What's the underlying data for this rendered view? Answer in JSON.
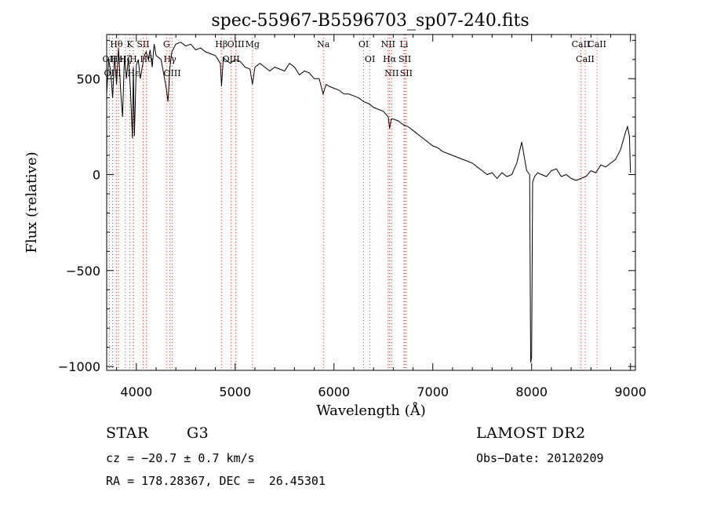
{
  "chart_data": {
    "type": "line",
    "title": "spec-55967-B5596703_sp07-240.fits",
    "xlabel": "Wavelength (Å)",
    "ylabel": "Flux (relative)",
    "xlim": [
      3700,
      9050
    ],
    "ylim": [
      -1020,
      730
    ],
    "xticks": [
      4000,
      5000,
      6000,
      7000,
      8000,
      9000
    ],
    "yticks": [
      -1000,
      -500,
      0,
      500
    ],
    "grid": false,
    "series": [
      {
        "x": [
          3700,
          3720,
          3740,
          3760,
          3780,
          3800,
          3820,
          3840,
          3860,
          3880,
          3900,
          3920,
          3940,
          3960,
          3970,
          3980,
          4000,
          4020,
          4040,
          4060,
          4080,
          4100,
          4120,
          4140,
          4160,
          4180,
          4200,
          4250,
          4300,
          4320,
          4340,
          4360,
          4400,
          4450,
          4500,
          4550,
          4600,
          4650,
          4700,
          4750,
          4800,
          4850,
          4862,
          4880,
          4900,
          4950,
          5000,
          5050,
          5100,
          5150,
          5175,
          5200,
          5250,
          5300,
          5350,
          5400,
          5450,
          5500,
          5550,
          5600,
          5650,
          5700,
          5750,
          5800,
          5850,
          5890,
          5920,
          5950,
          6000,
          6050,
          6100,
          6150,
          6200,
          6250,
          6300,
          6350,
          6400,
          6450,
          6500,
          6550,
          6563,
          6580,
          6600,
          6650,
          6700,
          6750,
          6800,
          6850,
          6900,
          6950,
          7000,
          7050,
          7100,
          7150,
          7200,
          7250,
          7300,
          7350,
          7400,
          7450,
          7500,
          7550,
          7600,
          7650,
          7700,
          7750,
          7800,
          7850,
          7900,
          7950,
          7980,
          7990,
          8000,
          8010,
          8030,
          8060,
          8100,
          8150,
          8200,
          8250,
          8300,
          8350,
          8400,
          8450,
          8500,
          8550,
          8600,
          8650,
          8700,
          8750,
          8800,
          8850,
          8900,
          8950,
          8970,
          8990,
          9000
        ],
        "y": [
          420,
          600,
          540,
          400,
          620,
          470,
          660,
          450,
          300,
          620,
          500,
          610,
          450,
          190,
          560,
          200,
          570,
          600,
          500,
          560,
          620,
          640,
          600,
          650,
          560,
          680,
          620,
          600,
          460,
          380,
          560,
          640,
          680,
          690,
          670,
          680,
          650,
          660,
          640,
          630,
          620,
          580,
          460,
          610,
          600,
          580,
          600,
          590,
          560,
          550,
          470,
          560,
          580,
          560,
          540,
          560,
          550,
          540,
          580,
          560,
          520,
          540,
          530,
          500,
          500,
          420,
          470,
          460,
          450,
          440,
          420,
          420,
          410,
          400,
          380,
          370,
          350,
          340,
          330,
          300,
          240,
          290,
          290,
          280,
          260,
          250,
          230,
          210,
          190,
          170,
          150,
          140,
          120,
          110,
          100,
          90,
          80,
          70,
          60,
          40,
          20,
          0,
          10,
          -20,
          10,
          -10,
          0,
          60,
          170,
          20,
          0,
          -980,
          -950,
          -40,
          -10,
          10,
          0,
          -10,
          20,
          30,
          -10,
          0,
          -20,
          -30,
          -20,
          -10,
          20,
          10,
          50,
          40,
          60,
          80,
          130,
          220,
          250,
          200,
          10
        ]
      }
    ],
    "lines": [
      {
        "label": "Hθ",
        "wl": 3798
      },
      {
        "label": "OII",
        "wl": 3727
      },
      {
        "label": "OIII",
        "wl": 3760
      },
      {
        "label": "Hζ",
        "wl": 3889
      },
      {
        "label": "HeI",
        "wl": 3820
      },
      {
        "label": "K",
        "wl": 3934
      },
      {
        "label": "H",
        "wl": 3969
      },
      {
        "label": "Hε",
        "wl": 3970
      },
      {
        "label": "SII",
        "wl": 4069
      },
      {
        "label": "Hδ",
        "wl": 4102
      },
      {
        "label": "G",
        "wl": 4305
      },
      {
        "label": "Hγ",
        "wl": 4340
      },
      {
        "label": "OIII",
        "wl": 4363
      },
      {
        "label": "Hβ",
        "wl": 4861
      },
      {
        "label": "OIII",
        "wl": 4959
      },
      {
        "label": "OIII",
        "wl": 5007
      },
      {
        "label": "Mg",
        "wl": 5175
      },
      {
        "label": "Na",
        "wl": 5893
      },
      {
        "label": "OI",
        "wl": 6300
      },
      {
        "label": "OI",
        "wl": 6364
      },
      {
        "label": "NII",
        "wl": 6548
      },
      {
        "label": "Hα",
        "wl": 6563
      },
      {
        "label": "NII",
        "wl": 6584
      },
      {
        "label": "Li",
        "wl": 6708
      },
      {
        "label": "SII",
        "wl": 6717
      },
      {
        "label": "SII",
        "wl": 6731
      },
      {
        "label": "CaII",
        "wl": 8498
      },
      {
        "label": "CaII",
        "wl": 8542
      },
      {
        "label": "CaII",
        "wl": 8662
      }
    ]
  },
  "info": {
    "class": "STAR",
    "subclass": "G3",
    "survey": "LAMOST DR2",
    "cz": "cz = −20.7 ± 0.7 km/s",
    "obs_date": "Obs−Date: 20120209",
    "coords": "RA = 178.28367, DEC =  26.45301"
  }
}
